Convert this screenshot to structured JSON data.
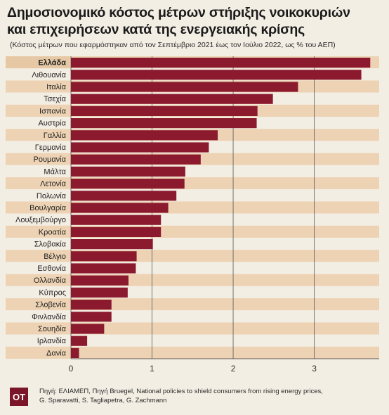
{
  "header": {
    "title_line1": "Δημοσιονομικό κόστος μέτρων στήριξης νοικοκυριών",
    "title_line2": "και επιχειρήσεων κατά της ενεργειακής κρίσης",
    "subtitle": "(Κόστος μέτρων που εφαρμόστηκαν από τον Σεπτέμβριο 2021 έως τον Ιούλιο 2022, ως % του ΑΕΠ)"
  },
  "footer": {
    "logo": "ΟΤ",
    "source_line1": "Πηγή: ΕΛΙΑΜΕΠ, Πηγή Bruegel, National policies to shield consumers from rising energy prices,",
    "source_line2": "G. Sparavatti, S. Tagliapetra, G. Zachmann"
  },
  "colors": {
    "bar": "#8b1a2f",
    "band_dark": "#edd3b4",
    "band_light": "#f3eee4",
    "highlight_label_bg": "#e6c9a4",
    "gridline": "#555555"
  },
  "chart_data": {
    "type": "bar",
    "orientation": "horizontal",
    "categories": [
      "Ελλάδα",
      "Λιθουανία",
      "Ιταλία",
      "Τσεχία",
      "Ισπανία",
      "Αυστρία",
      "Γαλλία",
      "Γερμανία",
      "Ρουμανία",
      "Μάλτα",
      "Λετονία",
      "Πολωνία",
      "Βουλγαρία",
      "Λουξεμβούργο",
      "Κροατία",
      "Σλοβακία",
      "Βέλγιο",
      "Εσθονία",
      "Ολλανδία",
      "Κύπρος",
      "Σλοβενία",
      "Φινλανδία",
      "Σουηδία",
      "Ιρλανδία",
      "Δανία"
    ],
    "values": [
      3.69,
      3.58,
      2.8,
      2.49,
      2.3,
      2.29,
      1.81,
      1.7,
      1.6,
      1.41,
      1.4,
      1.3,
      1.2,
      1.11,
      1.11,
      1.01,
      0.81,
      0.8,
      0.71,
      0.7,
      0.5,
      0.5,
      0.41,
      0.2,
      0.1
    ],
    "highlight": "Ελλάδα",
    "xlim": [
      0,
      3.8
    ],
    "xticks": [
      0,
      1,
      2,
      3
    ],
    "grid": true,
    "title": "Δημοσιονομικό κόστος μέτρων στήριξης νοικοκυριών και επιχειρήσεων κατά της ενεργειακής κρίσης",
    "xlabel": "",
    "ylabel": ""
  }
}
